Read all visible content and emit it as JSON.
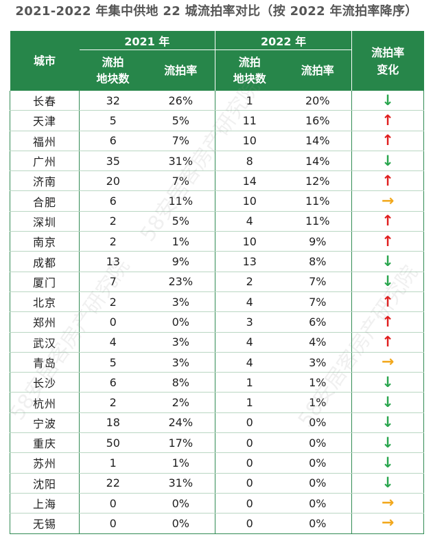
{
  "title": "2021-2022 年集中供地 22 城流拍率对比（按 2022 年流拍率降序）",
  "header": {
    "city": "城市",
    "year_2021": "2021 年",
    "year_2022": "2022 年",
    "count_line1": "流拍",
    "count_line2": "地块数",
    "rate": "流拍率",
    "change_line1": "流拍率",
    "change_line2": "变化"
  },
  "watermark": "58安居客房产研究院",
  "rows": [
    {
      "city": "长春",
      "c2021": "32",
      "r2021": "26%",
      "c2022": "1",
      "r2022": "20%",
      "change": "down"
    },
    {
      "city": "天津",
      "c2021": "5",
      "r2021": "5%",
      "c2022": "11",
      "r2022": "16%",
      "change": "up"
    },
    {
      "city": "福州",
      "c2021": "6",
      "r2021": "7%",
      "c2022": "10",
      "r2022": "14%",
      "change": "up"
    },
    {
      "city": "广州",
      "c2021": "35",
      "r2021": "31%",
      "c2022": "8",
      "r2022": "14%",
      "change": "down"
    },
    {
      "city": "济南",
      "c2021": "20",
      "r2021": "7%",
      "c2022": "14",
      "r2022": "12%",
      "change": "up"
    },
    {
      "city": "合肥",
      "c2021": "6",
      "r2021": "11%",
      "c2022": "10",
      "r2022": "11%",
      "change": "flat"
    },
    {
      "city": "深圳",
      "c2021": "2",
      "r2021": "5%",
      "c2022": "4",
      "r2022": "11%",
      "change": "up"
    },
    {
      "city": "南京",
      "c2021": "2",
      "r2021": "1%",
      "c2022": "10",
      "r2022": "9%",
      "change": "up"
    },
    {
      "city": "成都",
      "c2021": "13",
      "r2021": "9%",
      "c2022": "13",
      "r2022": "8%",
      "change": "down"
    },
    {
      "city": "厦门",
      "c2021": "7",
      "r2021": "23%",
      "c2022": "2",
      "r2022": "7%",
      "change": "down"
    },
    {
      "city": "北京",
      "c2021": "2",
      "r2021": "3%",
      "c2022": "4",
      "r2022": "7%",
      "change": "up"
    },
    {
      "city": "郑州",
      "c2021": "0",
      "r2021": "0%",
      "c2022": "3",
      "r2022": "6%",
      "change": "up"
    },
    {
      "city": "武汉",
      "c2021": "4",
      "r2021": "3%",
      "c2022": "4",
      "r2022": "4%",
      "change": "up"
    },
    {
      "city": "青岛",
      "c2021": "5",
      "r2021": "3%",
      "c2022": "4",
      "r2022": "3%",
      "change": "flat"
    },
    {
      "city": "长沙",
      "c2021": "6",
      "r2021": "8%",
      "c2022": "1",
      "r2022": "1%",
      "change": "down"
    },
    {
      "city": "杭州",
      "c2021": "2",
      "r2021": "2%",
      "c2022": "1",
      "r2022": "1%",
      "change": "down"
    },
    {
      "city": "宁波",
      "c2021": "18",
      "r2021": "24%",
      "c2022": "0",
      "r2022": "0%",
      "change": "down"
    },
    {
      "city": "重庆",
      "c2021": "50",
      "r2021": "17%",
      "c2022": "0",
      "r2022": "0%",
      "change": "down"
    },
    {
      "city": "苏州",
      "c2021": "1",
      "r2021": "1%",
      "c2022": "0",
      "r2022": "0%",
      "change": "down"
    },
    {
      "city": "沈阳",
      "c2021": "22",
      "r2021": "31%",
      "c2022": "0",
      "r2022": "0%",
      "change": "down"
    },
    {
      "city": "上海",
      "c2021": "0",
      "r2021": "0%",
      "c2022": "0",
      "r2022": "0%",
      "change": "flat"
    },
    {
      "city": "无锡",
      "c2021": "0",
      "r2021": "0%",
      "c2022": "0",
      "r2022": "0%",
      "change": "flat"
    }
  ],
  "arrows": {
    "down": "↓",
    "up": "↑",
    "flat": "→"
  }
}
